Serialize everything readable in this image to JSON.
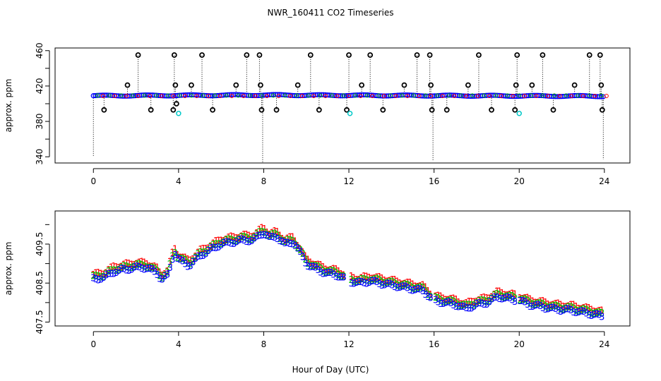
{
  "title": "NWR_160411  CO2 Timeseries",
  "xlabel": "Hour of Day (UTC)",
  "chart_data": [
    {
      "type": "scatter",
      "name": "top-panel",
      "ylabel": "approx. ppm",
      "xlim": [
        -1.8,
        25.2
      ],
      "ylim": [
        333,
        463
      ],
      "xticks": [
        "0",
        "4",
        "8",
        "12",
        "16",
        "20",
        "24"
      ],
      "yticks": [
        "340",
        "380",
        "420",
        "460"
      ],
      "baseline_level": 409,
      "baseline_color": "#0000ff",
      "spike_points": [
        [
          2.1,
          455
        ],
        [
          3.8,
          455
        ],
        [
          3.85,
          421
        ],
        [
          3.75,
          393
        ],
        [
          3.9,
          400
        ],
        [
          5.1,
          455
        ],
        [
          7.2,
          455
        ],
        [
          7.8,
          455
        ],
        [
          7.85,
          421
        ],
        [
          7.9,
          393
        ],
        [
          10.2,
          455
        ],
        [
          12.0,
          455
        ],
        [
          11.9,
          393
        ],
        [
          13.0,
          455
        ],
        [
          15.2,
          455
        ],
        [
          15.8,
          455
        ],
        [
          15.85,
          421
        ],
        [
          15.9,
          393
        ],
        [
          18.1,
          455
        ],
        [
          19.9,
          455
        ],
        [
          19.85,
          421
        ],
        [
          19.8,
          393
        ],
        [
          21.1,
          455
        ],
        [
          23.3,
          455
        ],
        [
          23.8,
          455
        ],
        [
          23.85,
          421
        ],
        [
          23.9,
          393
        ]
      ],
      "mid_points": [
        [
          0.5,
          393
        ],
        [
          1.6,
          421
        ],
        [
          2.7,
          393
        ],
        [
          4.6,
          421
        ],
        [
          5.6,
          393
        ],
        [
          6.7,
          421
        ],
        [
          8.6,
          393
        ],
        [
          9.6,
          421
        ],
        [
          10.6,
          393
        ],
        [
          12.6,
          421
        ],
        [
          13.6,
          393
        ],
        [
          14.6,
          421
        ],
        [
          16.6,
          393
        ],
        [
          17.6,
          421
        ],
        [
          18.7,
          393
        ],
        [
          20.6,
          421
        ],
        [
          21.6,
          393
        ],
        [
          22.6,
          421
        ]
      ],
      "low_drops": [
        [
          0.0,
          340
        ],
        [
          7.95,
          333
        ],
        [
          15.95,
          335
        ],
        [
          23.95,
          337
        ]
      ],
      "cyan_points": [
        [
          4.0,
          389
        ],
        [
          12.05,
          389
        ],
        [
          20.0,
          389
        ]
      ]
    },
    {
      "type": "scatter",
      "name": "bottom-panel",
      "ylabel": "approx. ppm",
      "xlim": [
        -1.8,
        25.2
      ],
      "ylim": [
        407.4,
        410.35
      ],
      "xticks": [
        "0",
        "4",
        "8",
        "12",
        "16",
        "20",
        "24"
      ],
      "yticks": [
        "407.5",
        "408.5",
        "409.5"
      ],
      "series": [
        {
          "name": "1",
          "color": "#ff0000",
          "offset": 0.12
        },
        {
          "name": "2",
          "color": "#00c000",
          "offset": 0.06
        },
        {
          "name": "3",
          "color": "#0000ff",
          "offset": 0.0
        }
      ],
      "trend_x": [
        0.0,
        0.5,
        1.0,
        1.5,
        2.0,
        2.5,
        3.0,
        3.2,
        3.5,
        3.8,
        4.0,
        4.5,
        5.0,
        5.5,
        6.0,
        6.5,
        7.0,
        7.5,
        8.0,
        8.3,
        8.6,
        9.0,
        9.4,
        9.7,
        10.0,
        10.5,
        11.0,
        11.5,
        12.0,
        12.5,
        13.0,
        13.5,
        14.0,
        14.5,
        15.0,
        15.5,
        16.0,
        16.5,
        17.0,
        17.5,
        18.0,
        18.5,
        19.0,
        19.5,
        20.0,
        20.5,
        21.0,
        21.5,
        22.0,
        22.5,
        23.0,
        23.5,
        23.9
      ],
      "trend_y": [
        408.6,
        408.65,
        408.8,
        408.85,
        408.9,
        408.9,
        408.75,
        408.6,
        408.7,
        409.3,
        409.1,
        408.95,
        409.2,
        409.35,
        409.5,
        409.55,
        409.6,
        409.6,
        409.8,
        409.65,
        409.7,
        409.5,
        409.55,
        409.3,
        409.0,
        408.85,
        408.75,
        408.7,
        408.55,
        408.5,
        408.55,
        408.5,
        408.45,
        408.4,
        408.35,
        408.3,
        408.05,
        408.0,
        407.95,
        407.85,
        407.95,
        408.0,
        408.15,
        408.1,
        408.05,
        407.95,
        407.9,
        407.85,
        407.82,
        407.8,
        407.75,
        407.7,
        407.65
      ]
    }
  ]
}
